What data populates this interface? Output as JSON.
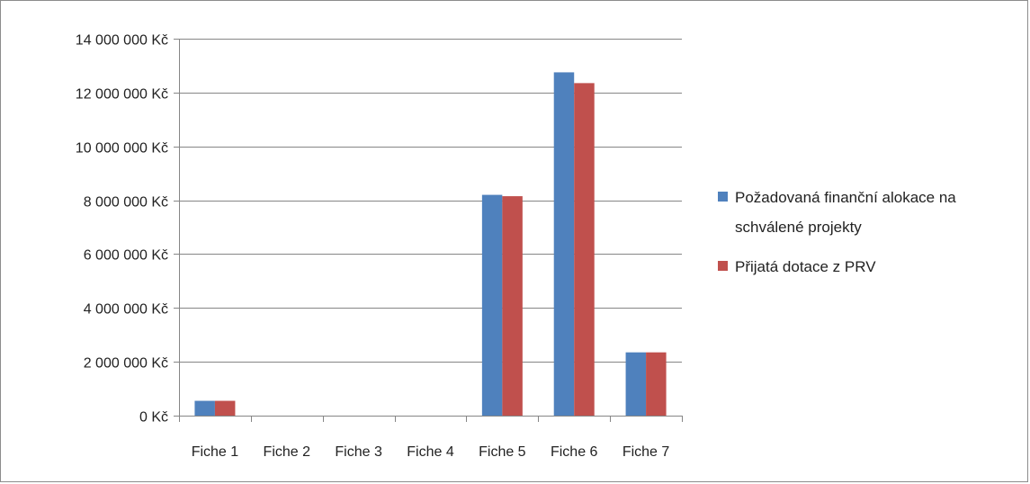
{
  "chart_data": {
    "type": "bar",
    "categories": [
      "Fiche 1",
      "Fiche 2",
      "Fiche 3",
      "Fiche 4",
      "Fiche 5",
      "Fiche 6",
      "Fiche 7"
    ],
    "series": [
      {
        "name": "Požadovaná finanční alokace na schválené projekty",
        "color": "#4f81bd",
        "values": [
          550000,
          0,
          0,
          0,
          8200000,
          12750000,
          2350000
        ]
      },
      {
        "name": "Přijatá dotace z PRV",
        "color": "#c0504d",
        "values": [
          550000,
          0,
          0,
          0,
          8150000,
          12350000,
          2350000
        ]
      }
    ],
    "y_ticks": [
      {
        "value": 0,
        "label": "0 Kč"
      },
      {
        "value": 2000000,
        "label": "2 000 000 Kč"
      },
      {
        "value": 4000000,
        "label": "4 000 000 Kč"
      },
      {
        "value": 6000000,
        "label": "6 000 000 Kč"
      },
      {
        "value": 8000000,
        "label": "8 000 000 Kč"
      },
      {
        "value": 10000000,
        "label": "10 000 000 Kč"
      },
      {
        "value": 12000000,
        "label": "12 000 000 Kč"
      },
      {
        "value": 14000000,
        "label": "14 000 000 Kč"
      }
    ],
    "ylim": [
      0,
      14000000
    ],
    "grid": true,
    "legend": {
      "placement": "right",
      "entries": [
        {
          "lines": [
            "Požadovaná finanční alokace na",
            "schválené projekty"
          ],
          "color": "#4f81bd"
        },
        {
          "lines": [
            "Přijatá dotace z PRV"
          ],
          "color": "#c0504d"
        }
      ]
    },
    "colors": {
      "gridline": "#868686",
      "axis": "#868686",
      "frame": "#8c8c8c"
    }
  }
}
